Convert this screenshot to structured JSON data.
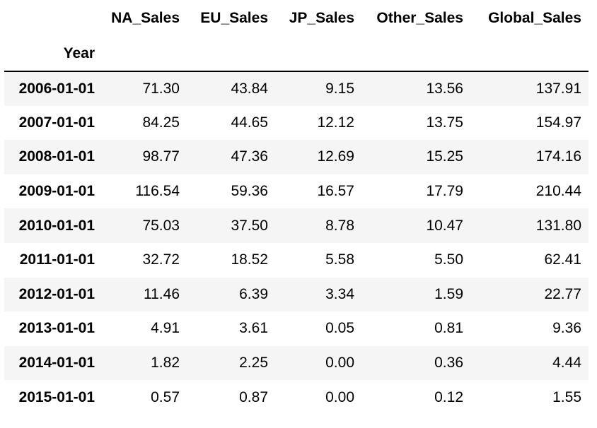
{
  "table": {
    "index_name": "Year",
    "columns": [
      "NA_Sales",
      "EU_Sales",
      "JP_Sales",
      "Other_Sales",
      "Global_Sales"
    ],
    "rows": [
      {
        "index": "2006-01-01",
        "values": [
          "71.30",
          "43.84",
          "9.15",
          "13.56",
          "137.91"
        ]
      },
      {
        "index": "2007-01-01",
        "values": [
          "84.25",
          "44.65",
          "12.12",
          "13.75",
          "154.97"
        ]
      },
      {
        "index": "2008-01-01",
        "values": [
          "98.77",
          "47.36",
          "12.69",
          "15.25",
          "174.16"
        ]
      },
      {
        "index": "2009-01-01",
        "values": [
          "116.54",
          "59.36",
          "16.57",
          "17.79",
          "210.44"
        ]
      },
      {
        "index": "2010-01-01",
        "values": [
          "75.03",
          "37.50",
          "8.78",
          "10.47",
          "131.80"
        ]
      },
      {
        "index": "2011-01-01",
        "values": [
          "32.72",
          "18.52",
          "5.58",
          "5.50",
          "62.41"
        ]
      },
      {
        "index": "2012-01-01",
        "values": [
          "11.46",
          "6.39",
          "3.34",
          "1.59",
          "22.77"
        ]
      },
      {
        "index": "2013-01-01",
        "values": [
          "4.91",
          "3.61",
          "0.05",
          "0.81",
          "9.36"
        ]
      },
      {
        "index": "2014-01-01",
        "values": [
          "1.82",
          "2.25",
          "0.00",
          "0.36",
          "4.44"
        ]
      },
      {
        "index": "2015-01-01",
        "values": [
          "0.57",
          "0.87",
          "0.00",
          "0.12",
          "1.55"
        ]
      }
    ]
  }
}
